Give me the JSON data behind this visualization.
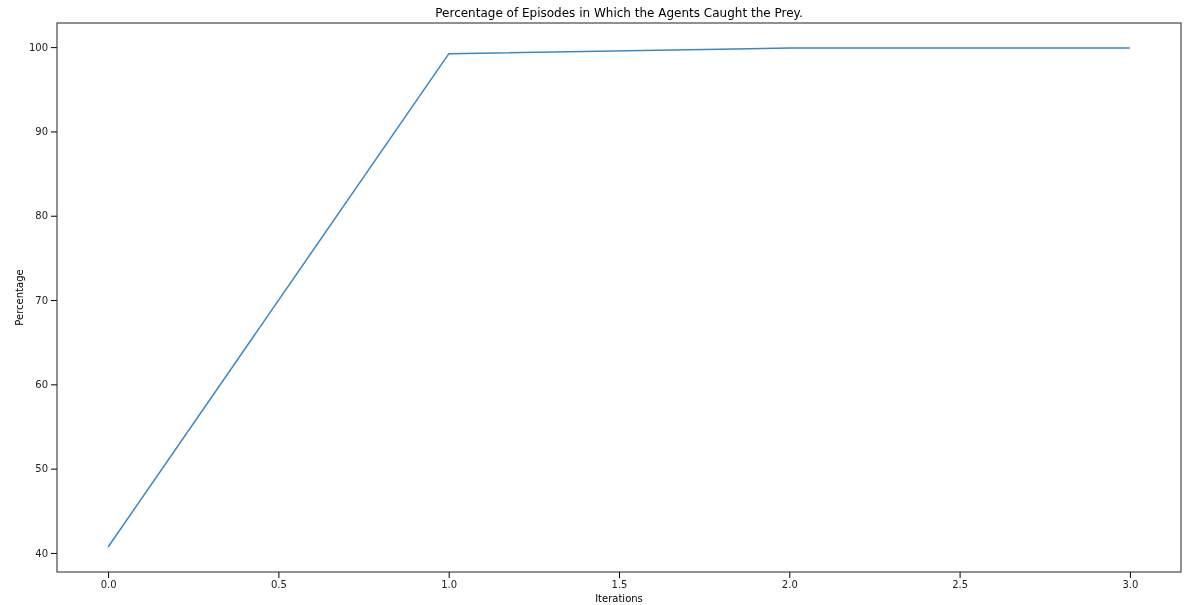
{
  "chart_data": {
    "type": "line",
    "title": "Percentage of Episodes in Which the Agents Caught the Prey.",
    "xlabel": "Iterations",
    "ylabel": "Percentage",
    "x": [
      0,
      1,
      2,
      3
    ],
    "series": [
      {
        "color": "#3a87c5",
        "values": [
          40.7,
          99.2,
          99.9,
          99.9
        ]
      }
    ],
    "xlim": [
      -0.15,
      3.15
    ],
    "xticks": [
      {
        "value": 0,
        "label": "0.0"
      },
      {
        "value": 0.5,
        "label": "0.5"
      },
      {
        "value": 1,
        "label": "1.0"
      },
      {
        "value": 1.5,
        "label": "1.5"
      },
      {
        "value": 2,
        "label": "2.0"
      },
      {
        "value": 2.5,
        "label": "2.5"
      },
      {
        "value": 3,
        "label": "3.0"
      }
    ],
    "ylim": [
      37.74,
      102.86
    ],
    "yticks": [
      40,
      50,
      60,
      70,
      80,
      90,
      100
    ],
    "marker": "none",
    "line_style": "solid"
  }
}
